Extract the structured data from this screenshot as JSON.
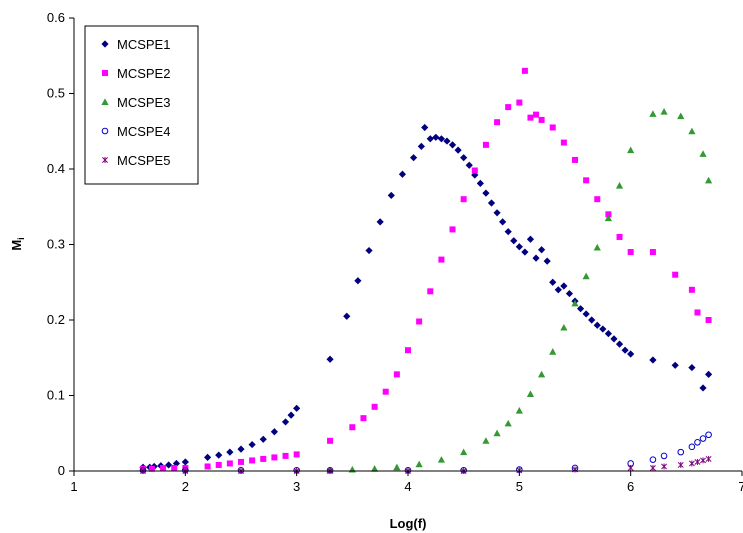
{
  "chart_data": {
    "type": "scatter",
    "title": "",
    "xlabel": "Log(f)",
    "ylabel_main": "M",
    "ylabel_sub": "i",
    "xlim": [
      1,
      7
    ],
    "ylim": [
      0,
      0.6
    ],
    "xticks": [
      1,
      2,
      3,
      4,
      5,
      6,
      7
    ],
    "yticks": [
      0,
      0.1,
      0.2,
      0.3,
      0.4,
      0.5,
      0.6
    ],
    "ytick_labels": [
      "0",
      "0.1",
      "0.2",
      "0.3",
      "0.4",
      "0.5",
      "0.6"
    ],
    "grid": false,
    "legend_position": "top-left",
    "series": [
      {
        "name": "MCSPE1",
        "color": "#000080",
        "marker": "diamond",
        "points": [
          [
            1.62,
            0.005
          ],
          [
            1.68,
            0.005
          ],
          [
            1.72,
            0.006
          ],
          [
            1.78,
            0.007
          ],
          [
            1.85,
            0.008
          ],
          [
            1.92,
            0.01
          ],
          [
            2.0,
            0.012
          ],
          [
            2.2,
            0.018
          ],
          [
            2.3,
            0.021
          ],
          [
            2.4,
            0.025
          ],
          [
            2.5,
            0.029
          ],
          [
            2.6,
            0.035
          ],
          [
            2.7,
            0.042
          ],
          [
            2.8,
            0.052
          ],
          [
            2.9,
            0.065
          ],
          [
            2.95,
            0.074
          ],
          [
            3.0,
            0.083
          ],
          [
            3.3,
            0.148
          ],
          [
            3.45,
            0.205
          ],
          [
            3.55,
            0.252
          ],
          [
            3.65,
            0.292
          ],
          [
            3.75,
            0.33
          ],
          [
            3.85,
            0.365
          ],
          [
            3.95,
            0.393
          ],
          [
            4.05,
            0.415
          ],
          [
            4.12,
            0.43
          ],
          [
            4.15,
            0.455
          ],
          [
            4.2,
            0.44
          ],
          [
            4.25,
            0.442
          ],
          [
            4.3,
            0.44
          ],
          [
            4.35,
            0.437
          ],
          [
            4.4,
            0.432
          ],
          [
            4.45,
            0.425
          ],
          [
            4.5,
            0.415
          ],
          [
            4.55,
            0.405
          ],
          [
            4.6,
            0.392
          ],
          [
            4.65,
            0.381
          ],
          [
            4.7,
            0.368
          ],
          [
            4.75,
            0.355
          ],
          [
            4.8,
            0.342
          ],
          [
            4.85,
            0.33
          ],
          [
            4.9,
            0.317
          ],
          [
            4.95,
            0.305
          ],
          [
            5.0,
            0.297
          ],
          [
            5.05,
            0.29
          ],
          [
            5.1,
            0.307
          ],
          [
            5.15,
            0.282
          ],
          [
            5.2,
            0.293
          ],
          [
            5.25,
            0.278
          ],
          [
            5.3,
            0.25
          ],
          [
            5.35,
            0.24
          ],
          [
            5.4,
            0.245
          ],
          [
            5.45,
            0.235
          ],
          [
            5.5,
            0.225
          ],
          [
            5.55,
            0.215
          ],
          [
            5.6,
            0.208
          ],
          [
            5.65,
            0.2
          ],
          [
            5.7,
            0.193
          ],
          [
            5.75,
            0.188
          ],
          [
            5.8,
            0.182
          ],
          [
            5.85,
            0.175
          ],
          [
            5.9,
            0.168
          ],
          [
            5.95,
            0.16
          ],
          [
            6.0,
            0.155
          ],
          [
            6.2,
            0.147
          ],
          [
            6.4,
            0.14
          ],
          [
            6.55,
            0.137
          ],
          [
            6.65,
            0.11
          ],
          [
            6.7,
            0.128
          ]
        ]
      },
      {
        "name": "MCSPE2",
        "color": "#FF00FF",
        "marker": "square",
        "points": [
          [
            1.62,
            0.003
          ],
          [
            1.7,
            0.003
          ],
          [
            1.8,
            0.004
          ],
          [
            1.9,
            0.004
          ],
          [
            2.0,
            0.004
          ],
          [
            2.2,
            0.006
          ],
          [
            2.3,
            0.008
          ],
          [
            2.4,
            0.01
          ],
          [
            2.5,
            0.012
          ],
          [
            2.6,
            0.014
          ],
          [
            2.7,
            0.016
          ],
          [
            2.8,
            0.018
          ],
          [
            2.9,
            0.02
          ],
          [
            3.0,
            0.022
          ],
          [
            3.3,
            0.04
          ],
          [
            3.5,
            0.058
          ],
          [
            3.6,
            0.07
          ],
          [
            3.7,
            0.085
          ],
          [
            3.8,
            0.105
          ],
          [
            3.9,
            0.128
          ],
          [
            4.0,
            0.16
          ],
          [
            4.1,
            0.198
          ],
          [
            4.2,
            0.238
          ],
          [
            4.3,
            0.28
          ],
          [
            4.4,
            0.32
          ],
          [
            4.5,
            0.36
          ],
          [
            4.6,
            0.398
          ],
          [
            4.7,
            0.432
          ],
          [
            4.8,
            0.462
          ],
          [
            4.9,
            0.482
          ],
          [
            5.0,
            0.488
          ],
          [
            5.05,
            0.53
          ],
          [
            5.1,
            0.468
          ],
          [
            5.15,
            0.472
          ],
          [
            5.2,
            0.465
          ],
          [
            5.3,
            0.455
          ],
          [
            5.4,
            0.435
          ],
          [
            5.5,
            0.412
          ],
          [
            5.6,
            0.385
          ],
          [
            5.7,
            0.36
          ],
          [
            5.8,
            0.34
          ],
          [
            5.9,
            0.31
          ],
          [
            6.0,
            0.29
          ],
          [
            6.2,
            0.29
          ],
          [
            6.4,
            0.26
          ],
          [
            6.55,
            0.24
          ],
          [
            6.6,
            0.21
          ],
          [
            6.7,
            0.2
          ]
        ]
      },
      {
        "name": "MCSPE3",
        "color": "#339933",
        "marker": "triangle",
        "points": [
          [
            3.3,
            0.001
          ],
          [
            3.5,
            0.002
          ],
          [
            3.7,
            0.003
          ],
          [
            3.9,
            0.005
          ],
          [
            4.1,
            0.009
          ],
          [
            4.3,
            0.015
          ],
          [
            4.5,
            0.025
          ],
          [
            4.7,
            0.04
          ],
          [
            4.8,
            0.05
          ],
          [
            4.9,
            0.063
          ],
          [
            5.0,
            0.08
          ],
          [
            5.1,
            0.102
          ],
          [
            5.2,
            0.128
          ],
          [
            5.3,
            0.158
          ],
          [
            5.4,
            0.19
          ],
          [
            5.5,
            0.222
          ],
          [
            5.6,
            0.258
          ],
          [
            5.7,
            0.296
          ],
          [
            5.8,
            0.335
          ],
          [
            5.9,
            0.378
          ],
          [
            6.0,
            0.425
          ],
          [
            6.2,
            0.473
          ],
          [
            6.3,
            0.476
          ],
          [
            6.45,
            0.47
          ],
          [
            6.55,
            0.45
          ],
          [
            6.65,
            0.42
          ],
          [
            6.7,
            0.385
          ]
        ]
      },
      {
        "name": "MCSPE4",
        "color": "#0000CC",
        "marker": "circle",
        "points": [
          [
            1.62,
            0.001
          ],
          [
            2.0,
            0.001
          ],
          [
            2.5,
            0.001
          ],
          [
            3.0,
            0.001
          ],
          [
            3.3,
            0.001
          ],
          [
            4.0,
            0.001
          ],
          [
            4.5,
            0.001
          ],
          [
            5.0,
            0.002
          ],
          [
            5.5,
            0.004
          ],
          [
            6.0,
            0.01
          ],
          [
            6.2,
            0.015
          ],
          [
            6.3,
            0.02
          ],
          [
            6.45,
            0.025
          ],
          [
            6.55,
            0.032
          ],
          [
            6.6,
            0.038
          ],
          [
            6.65,
            0.043
          ],
          [
            6.7,
            0.048
          ]
        ]
      },
      {
        "name": "MCSPE5",
        "color": "#800080",
        "marker": "star",
        "points": [
          [
            1.62,
            0.0
          ],
          [
            2.0,
            0.0
          ],
          [
            2.5,
            0.0
          ],
          [
            3.0,
            0.0
          ],
          [
            3.3,
            0.0
          ],
          [
            4.0,
            0.0
          ],
          [
            4.5,
            0.0
          ],
          [
            5.0,
            0.001
          ],
          [
            5.5,
            0.002
          ],
          [
            6.0,
            0.004
          ],
          [
            6.2,
            0.004
          ],
          [
            6.3,
            0.006
          ],
          [
            6.45,
            0.008
          ],
          [
            6.55,
            0.01
          ],
          [
            6.6,
            0.012
          ],
          [
            6.65,
            0.014
          ],
          [
            6.7,
            0.016
          ]
        ]
      }
    ]
  }
}
